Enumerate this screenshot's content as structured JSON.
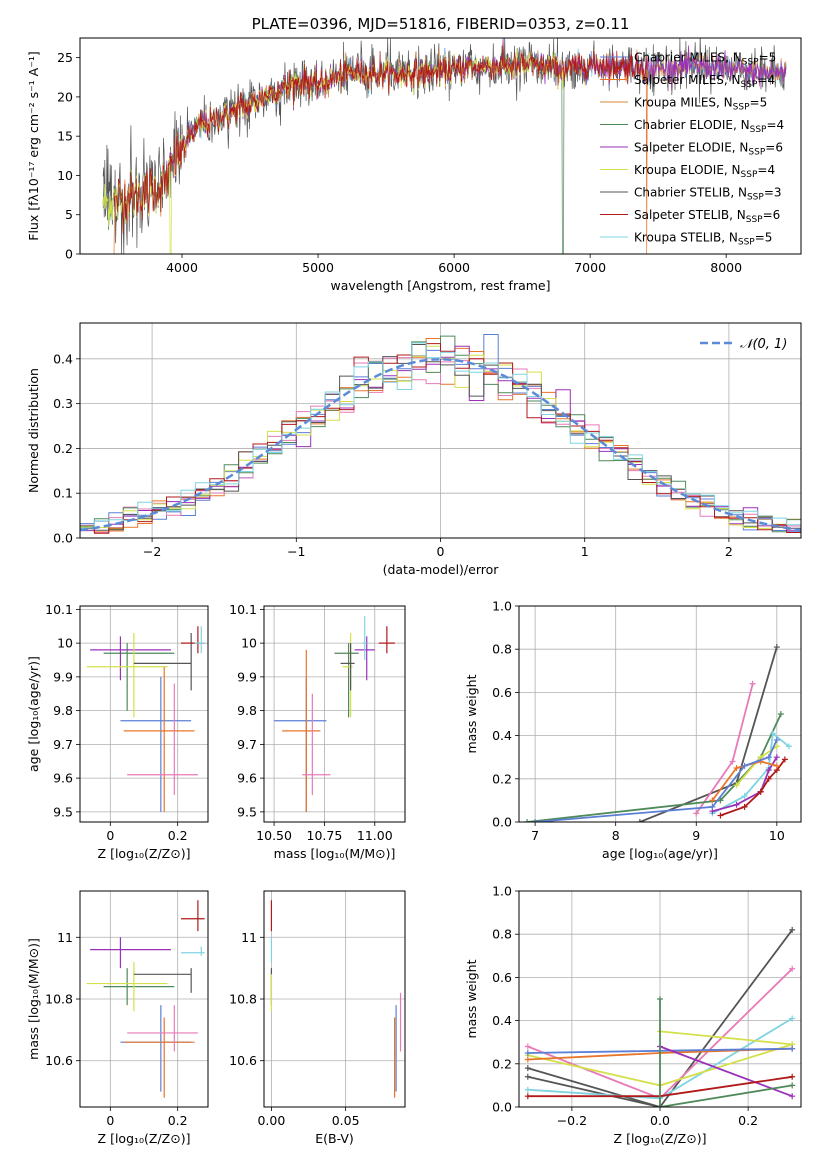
{
  "colors": {
    "Chabrier MILES": "#5b7fd6",
    "Salpeter MILES": "#e8752a",
    "Kroupa MILES": "#d68a3a",
    "Chabrier ELODIE": "#4f8a5a",
    "Salpeter ELODIE": "#9b30b8",
    "Kroupa ELODIE": "#d4e04a",
    "Chabrier STELIB": "#555555",
    "Salpeter STELIB": "#b01a1a",
    "Kroupa STELIB": "#7fd4e0",
    "pink": "#e87ab8",
    "normal": "#5b8bd8"
  },
  "chart_data": [
    {
      "id": "spectrum",
      "type": "line",
      "title": "PLATE=0396, MJD=51816, FIBERID=0353, z=0.11",
      "xlabel": "wavelength [Angstrom, rest frame]",
      "ylabel": "Flux [fλ10⁻¹⁷ erg cm⁻² s⁻¹ A⁻¹]",
      "xlim": [
        3250,
        8550
      ],
      "ylim": [
        0,
        27.5
      ],
      "xticks": [
        4000,
        5000,
        6000,
        7000,
        8000
      ],
      "yticks": [
        0,
        5,
        10,
        15,
        20,
        25
      ],
      "legend": [
        {
          "label": "Chabrier MILES, N",
          "sub": "SSP",
          "tail": "=5",
          "color": "Chabrier MILES"
        },
        {
          "label": "Salpeter MILES, N",
          "sub": "SSP",
          "tail": "=4",
          "color": "Salpeter MILES"
        },
        {
          "label": "Kroupa MILES, N",
          "sub": "SSP",
          "tail": "=5",
          "color": "Kroupa MILES"
        },
        {
          "label": "Chabrier ELODIE, N",
          "sub": "SSP",
          "tail": "=4",
          "color": "Chabrier ELODIE"
        },
        {
          "label": "Salpeter ELODIE, N",
          "sub": "SSP",
          "tail": "=6",
          "color": "Salpeter ELODIE"
        },
        {
          "label": "Kroupa ELODIE, N",
          "sub": "SSP",
          "tail": "=4",
          "color": "Kroupa ELODIE"
        },
        {
          "label": "Chabrier STELIB, N",
          "sub": "SSP",
          "tail": "=3",
          "color": "Chabrier STELIB"
        },
        {
          "label": "Salpeter STELIB, N",
          "sub": "SSP",
          "tail": "=6",
          "color": "Salpeter STELIB"
        },
        {
          "label": "Kroupa STELIB, N",
          "sub": "SSP",
          "tail": "=5",
          "color": "Kroupa STELIB"
        }
      ],
      "continuum_x": [
        3400,
        3700,
        3850,
        3950,
        4100,
        4300,
        4500,
        4700,
        4900,
        5000,
        5200,
        5500,
        5800,
        6000,
        6300,
        6600,
        6800,
        7000,
        7300,
        7500,
        7800,
        8000,
        8300,
        8450
      ],
      "continuum_y": [
        6.5,
        7.5,
        8.5,
        12,
        16,
        17.5,
        19,
        21,
        22,
        21.5,
        23,
        23,
        23,
        23.5,
        24,
        24,
        23.5,
        24,
        24,
        23.5,
        24,
        23.5,
        23,
        23
      ]
    },
    {
      "id": "residuals",
      "type": "histogram",
      "xlabel": "(data-model)/error",
      "ylabel": "Normed distribution",
      "xlim": [
        -2.5,
        2.5
      ],
      "ylim": [
        0,
        0.48
      ],
      "xticks": [
        -2,
        -1,
        0,
        1,
        2
      ],
      "xtick_labels": [
        "−2",
        "−1",
        "0",
        "1",
        "2"
      ],
      "yticks": [
        0,
        0.1,
        0.2,
        0.3,
        0.4
      ],
      "ytick_labels": [
        "0.0",
        "0.1",
        "0.2",
        "0.3",
        "0.4"
      ],
      "bin_width": 0.1,
      "legend_label": "𝒩(0, 1)"
    },
    {
      "id": "age_vs_Z",
      "type": "errorbar",
      "xlabel": "Z [log₁₀(Z/Z⊙)]",
      "ylabel": "age  [log₁₀(age/yr)]",
      "xlim": [
        -0.09,
        0.29
      ],
      "ylim": [
        9.47,
        10.11
      ],
      "xticks": [
        0.0,
        0.2
      ],
      "yticks": [
        9.5,
        9.6,
        9.7,
        9.8,
        9.9,
        10.0,
        10.1
      ],
      "points": [
        {
          "c": "Chabrier MILES",
          "x": 0.15,
          "y": 9.77,
          "xe": [
            0.03,
            0.24
          ],
          "ye": [
            9.5,
            9.9
          ]
        },
        {
          "c": "Salpeter MILES",
          "x": 0.16,
          "y": 9.74,
          "xe": [
            0.04,
            0.25
          ],
          "ye": [
            9.5,
            9.93
          ]
        },
        {
          "c": "pink",
          "x": 0.19,
          "y": 9.61,
          "xe": [
            0.05,
            0.26
          ],
          "ye": [
            9.55,
            9.88
          ]
        },
        {
          "c": "Chabrier ELODIE",
          "x": 0.05,
          "y": 9.97,
          "xe": [
            -0.02,
            0.19
          ],
          "ye": [
            9.8,
            10.0
          ]
        },
        {
          "c": "Salpeter ELODIE",
          "x": 0.03,
          "y": 9.98,
          "xe": [
            -0.06,
            0.18
          ],
          "ye": [
            9.89,
            10.02
          ]
        },
        {
          "c": "Kroupa ELODIE",
          "x": 0.07,
          "y": 9.93,
          "xe": [
            -0.07,
            0.17
          ],
          "ye": [
            9.78,
            10.03
          ]
        },
        {
          "c": "Chabrier STELIB",
          "x": 0.24,
          "y": 9.94,
          "xe": [
            0.07,
            0.24
          ],
          "ye": [
            9.86,
            10.03
          ]
        },
        {
          "c": "Salpeter STELIB",
          "x": 0.26,
          "y": 10.0,
          "xe": [
            0.21,
            0.28
          ],
          "ye": [
            9.97,
            10.05
          ]
        },
        {
          "c": "Kroupa STELIB",
          "x": 0.27,
          "y": 10.0,
          "xe": [
            0.25,
            0.28
          ],
          "ye": [
            9.97,
            10.05
          ]
        }
      ]
    },
    {
      "id": "age_vs_mass",
      "type": "errorbar",
      "xlabel": "mass [log₁₀(M/M⊙)]",
      "ylabel": "",
      "xlim": [
        10.45,
        11.15
      ],
      "ylim": [
        9.47,
        10.11
      ],
      "xticks": [
        10.5,
        10.75,
        11.0
      ],
      "xtick_labels": [
        "10.50",
        "10.75",
        "11.00"
      ],
      "yticks": [
        9.5,
        9.6,
        9.7,
        9.8,
        9.9,
        10.0,
        10.1
      ],
      "points": [
        {
          "c": "Chabrier MILES",
          "x": 10.66,
          "y": 9.77,
          "xe": [
            10.5,
            10.76
          ],
          "ye": [
            9.5,
            9.9
          ]
        },
        {
          "c": "Salpeter MILES",
          "x": 10.66,
          "y": 9.74,
          "xe": [
            10.54,
            10.73
          ],
          "ye": [
            9.5,
            9.98
          ]
        },
        {
          "c": "pink",
          "x": 10.69,
          "y": 9.61,
          "xe": [
            10.64,
            10.78
          ],
          "ye": [
            9.55,
            9.85
          ]
        },
        {
          "c": "Chabrier ELODIE",
          "x": 10.87,
          "y": 9.97,
          "xe": [
            10.8,
            10.92
          ],
          "ye": [
            9.78,
            10.0
          ]
        },
        {
          "c": "Salpeter ELODIE",
          "x": 10.96,
          "y": 9.98,
          "xe": [
            10.9,
            11.0
          ],
          "ye": [
            9.89,
            10.02
          ]
        },
        {
          "c": "Kroupa ELODIE",
          "x": 10.88,
          "y": 9.93,
          "xe": [
            10.84,
            10.89
          ],
          "ye": [
            9.78,
            10.03
          ]
        },
        {
          "c": "Chabrier STELIB",
          "x": 10.88,
          "y": 9.94,
          "xe": [
            10.83,
            10.9
          ],
          "ye": [
            9.86,
            10.0
          ]
        },
        {
          "c": "Salpeter STELIB",
          "x": 11.06,
          "y": 10.0,
          "xe": [
            11.02,
            11.1
          ],
          "ye": [
            9.97,
            10.05
          ]
        },
        {
          "c": "Kroupa STELIB",
          "x": 10.95,
          "y": 10.0,
          "xe": [
            10.94,
            10.96
          ],
          "ye": [
            9.95,
            10.08
          ]
        }
      ]
    },
    {
      "id": "weight_vs_age",
      "type": "line",
      "xlabel": "age  [log₁₀(age/yr)]",
      "ylabel": "mass weight",
      "xlim": [
        6.8,
        10.3
      ],
      "ylim": [
        0,
        1.0
      ],
      "xticks": [
        7,
        8,
        9,
        10
      ],
      "yticks": [
        0,
        0.2,
        0.4,
        0.6,
        0.8,
        1.0
      ],
      "ytick_labels": [
        "0.0",
        "0.2",
        "0.4",
        "0.6",
        "0.8",
        "1.0"
      ],
      "series": [
        {
          "c": "Chabrier STELIB",
          "x": [
            8.3,
            9.5,
            10.0
          ],
          "y": [
            0.0,
            0.18,
            0.81
          ]
        },
        {
          "c": "pink",
          "x": [
            9.0,
            9.45,
            9.7
          ],
          "y": [
            0.04,
            0.28,
            0.64
          ]
        },
        {
          "c": "Chabrier ELODIE",
          "x": [
            6.9,
            9.3,
            9.8,
            10.05
          ],
          "y": [
            0.0,
            0.1,
            0.3,
            0.5
          ]
        },
        {
          "c": "Kroupa STELIB",
          "x": [
            9.2,
            9.6,
            9.9,
            9.95,
            10.15
          ],
          "y": [
            0.04,
            0.12,
            0.25,
            0.41,
            0.35
          ]
        },
        {
          "c": "Salpeter ELODIE",
          "x": [
            9.2,
            9.5,
            9.8,
            9.9,
            10.0
          ],
          "y": [
            0.05,
            0.08,
            0.14,
            0.24,
            0.3
          ]
        },
        {
          "c": "Salpeter STELIB",
          "x": [
            9.3,
            9.6,
            9.8,
            9.9,
            10.0,
            10.1
          ],
          "y": [
            0.03,
            0.07,
            0.14,
            0.2,
            0.24,
            0.29
          ]
        },
        {
          "c": "Kroupa ELODIE",
          "x": [
            9.5,
            9.8,
            10.0
          ],
          "y": [
            0.17,
            0.3,
            0.35
          ]
        },
        {
          "c": "Salpeter MILES",
          "x": [
            9.2,
            9.5,
            9.8,
            10.0
          ],
          "y": [
            0.1,
            0.25,
            0.28,
            0.26
          ]
        },
        {
          "c": "Chabrier MILES",
          "x": [
            7.0,
            9.2,
            9.6,
            9.9,
            10.0
          ],
          "y": [
            0.0,
            0.07,
            0.26,
            0.3,
            0.38
          ]
        }
      ]
    },
    {
      "id": "mass_vs_Z",
      "type": "errorbar",
      "xlabel": "Z [log₁₀(Z/Z⊙)]",
      "ylabel": "mass [log₁₀(M/M⊙)]",
      "xlim": [
        -0.09,
        0.29
      ],
      "ylim": [
        10.45,
        11.15
      ],
      "xticks": [
        0.0,
        0.2
      ],
      "yticks": [
        10.6,
        10.8,
        11.0
      ],
      "points": [
        {
          "c": "Chabrier MILES",
          "x": 0.15,
          "y": 10.66,
          "xe": [
            0.03,
            0.24
          ],
          "ye": [
            10.5,
            10.78
          ]
        },
        {
          "c": "Salpeter MILES",
          "x": 0.16,
          "y": 10.66,
          "xe": [
            0.04,
            0.25
          ],
          "ye": [
            10.48,
            10.74
          ]
        },
        {
          "c": "pink",
          "x": 0.19,
          "y": 10.69,
          "xe": [
            0.05,
            0.26
          ],
          "ye": [
            10.63,
            10.78
          ]
        },
        {
          "c": "Chabrier ELODIE",
          "x": 0.05,
          "y": 10.84,
          "xe": [
            -0.02,
            0.19
          ],
          "ye": [
            10.78,
            10.9
          ]
        },
        {
          "c": "Salpeter ELODIE",
          "x": 0.03,
          "y": 10.96,
          "xe": [
            -0.06,
            0.18
          ],
          "ye": [
            10.9,
            11.0
          ]
        },
        {
          "c": "Kroupa ELODIE",
          "x": 0.07,
          "y": 10.85,
          "xe": [
            -0.07,
            0.17
          ],
          "ye": [
            10.76,
            10.92
          ]
        },
        {
          "c": "Chabrier STELIB",
          "x": 0.24,
          "y": 10.88,
          "xe": [
            0.07,
            0.24
          ],
          "ye": [
            10.82,
            10.9
          ]
        },
        {
          "c": "Salpeter STELIB",
          "x": 0.26,
          "y": 11.06,
          "xe": [
            0.21,
            0.28
          ],
          "ye": [
            11.02,
            11.12
          ]
        },
        {
          "c": "Kroupa STELIB",
          "x": 0.27,
          "y": 10.95,
          "xe": [
            0.21,
            0.28
          ],
          "ye": [
            10.94,
            10.97
          ]
        }
      ]
    },
    {
      "id": "mass_vs_ebv",
      "type": "errorbar",
      "xlabel": "E(B-V)",
      "ylabel": "",
      "xlim": [
        -0.005,
        0.09
      ],
      "ylim": [
        10.45,
        11.15
      ],
      "xticks": [
        0.0,
        0.05
      ],
      "xtick_labels": [
        "0.00",
        "0.05"
      ],
      "yticks": [
        10.6,
        10.8,
        11.0
      ],
      "points": [
        {
          "c": "Salpeter MILES",
          "x": 0.083,
          "y": 10.62,
          "xe": [
            0.083,
            0.083
          ],
          "ye": [
            10.48,
            10.74
          ]
        },
        {
          "c": "Chabrier MILES",
          "x": 0.084,
          "y": 10.66,
          "xe": [
            0.084,
            0.084
          ],
          "ye": [
            10.5,
            10.78
          ]
        },
        {
          "c": "pink",
          "x": 0.087,
          "y": 10.69,
          "xe": [
            0.087,
            0.087
          ],
          "ye": [
            10.63,
            10.82
          ]
        },
        {
          "c": "Chabrier STELIB",
          "x": 0.0,
          "y": 10.85,
          "xe": [
            0.0,
            0.0
          ],
          "ye": [
            10.78,
            10.9
          ]
        },
        {
          "c": "Kroupa ELODIE",
          "x": 0.0,
          "y": 10.82,
          "xe": [
            0.0,
            0.0
          ],
          "ye": [
            10.76,
            10.88
          ]
        },
        {
          "c": "Kroupa STELIB",
          "x": 0.0,
          "y": 10.97,
          "xe": [
            0.0,
            0.0
          ],
          "ye": [
            10.92,
            11.0
          ]
        },
        {
          "c": "Salpeter STELIB",
          "x": 0.0,
          "y": 11.06,
          "xe": [
            0.0,
            0.0
          ],
          "ye": [
            11.02,
            11.12
          ]
        }
      ]
    },
    {
      "id": "weight_vs_Z",
      "type": "line",
      "xlabel": "Z [log₁₀(Z/Z⊙)]",
      "ylabel": "mass weight",
      "xlim": [
        -0.32,
        0.32
      ],
      "ylim": [
        0,
        1.0
      ],
      "xticks": [
        -0.2,
        0.0,
        0.2
      ],
      "xtick_labels": [
        "−0.2",
        "0.0",
        "0.2"
      ],
      "yticks": [
        0,
        0.2,
        0.4,
        0.6,
        0.8,
        1.0
      ],
      "ytick_labels": [
        "0.0",
        "0.2",
        "0.4",
        "0.6",
        "0.8",
        "1.0"
      ],
      "series": [
        {
          "c": "Chabrier STELIB",
          "x": [
            -0.3,
            0.0,
            0.3
          ],
          "y": [
            0.18,
            0.0,
            0.82
          ]
        },
        {
          "c": "Chabrier STELIB",
          "x": [
            -0.3,
            0.0
          ],
          "y": [
            0.14,
            0.0
          ]
        },
        {
          "c": "pink",
          "x": [
            -0.3,
            0.0,
            0.3
          ],
          "y": [
            0.28,
            0.04,
            0.64
          ]
        },
        {
          "c": "Kroupa STELIB",
          "x": [
            -0.3,
            0.0,
            0.3
          ],
          "y": [
            0.08,
            0.04,
            0.41
          ]
        },
        {
          "c": "Kroupa ELODIE",
          "x": [
            -0.3,
            0.0,
            0.3
          ],
          "y": [
            0.24,
            0.1,
            0.29
          ]
        },
        {
          "c": "Kroupa ELODIE",
          "x": [
            0.0,
            0.3
          ],
          "y": [
            0.35,
            0.29
          ]
        },
        {
          "c": "Salpeter MILES",
          "x": [
            -0.3,
            0.0,
            0.3
          ],
          "y": [
            0.22,
            0.25,
            0.27
          ]
        },
        {
          "c": "Chabrier MILES",
          "x": [
            -0.3,
            0.0,
            0.3
          ],
          "y": [
            0.25,
            0.26,
            0.27
          ]
        },
        {
          "c": "Salpeter ELODIE",
          "x": [
            0.0,
            0.3
          ],
          "y": [
            0.28,
            0.05
          ]
        },
        {
          "c": "Salpeter STELIB",
          "x": [
            -0.3,
            0.0,
            0.3
          ],
          "y": [
            0.05,
            0.05,
            0.14
          ]
        },
        {
          "c": "Chabrier ELODIE",
          "x": [
            0.0,
            0.3
          ],
          "y": [
            0.0,
            0.1
          ]
        },
        {
          "c": "Chabrier ELODIE",
          "x": [
            0.0,
            0.0
          ],
          "y": [
            0.0,
            0.5
          ]
        }
      ]
    }
  ]
}
